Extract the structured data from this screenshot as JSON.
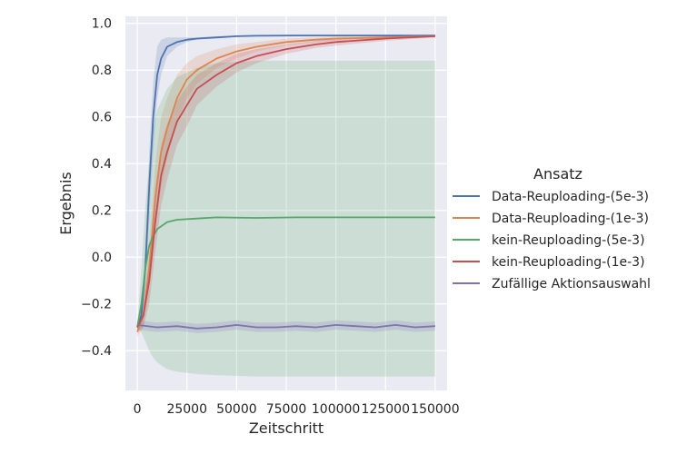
{
  "chart_data": {
    "type": "line",
    "title": "",
    "xlabel": "Zeitschritt",
    "ylabel": "Ergebnis",
    "xlim": [
      -6000,
      156000
    ],
    "ylim": [
      -0.57,
      1.03
    ],
    "xticks": [
      0,
      25000,
      50000,
      75000,
      100000,
      125000,
      150000
    ],
    "xtick_labels": [
      "0",
      "25000",
      "50000",
      "75000",
      "100000",
      "125000",
      "150000"
    ],
    "yticks": [
      -0.4,
      -0.2,
      0.0,
      0.2,
      0.4,
      0.6,
      0.8,
      1.0
    ],
    "ytick_labels": [
      "−0.4",
      "−0.2",
      "0.0",
      "0.2",
      "0.4",
      "0.6",
      "0.8",
      "1.0"
    ],
    "grid": true,
    "legend": {
      "title": "Ansatz",
      "placement": "right"
    },
    "series": [
      {
        "name": "Data-Reuploading-(5e-3)",
        "color": "#4c72b0",
        "x": [
          0,
          2000,
          4000,
          6000,
          8000,
          10000,
          12000,
          15000,
          20000,
          25000,
          30000,
          40000,
          50000,
          60000,
          80000,
          100000,
          125000,
          150000
        ],
        "y": [
          -0.3,
          -0.25,
          -0.05,
          0.3,
          0.6,
          0.78,
          0.85,
          0.9,
          0.92,
          0.93,
          0.935,
          0.94,
          0.945,
          0.947,
          0.948,
          0.948,
          0.948,
          0.948
        ],
        "y_low": [
          -0.32,
          -0.28,
          -0.12,
          0.15,
          0.45,
          0.68,
          0.78,
          0.86,
          0.9,
          0.92,
          0.93,
          0.935,
          0.942,
          0.945,
          0.946,
          0.946,
          0.946,
          0.946
        ],
        "y_high": [
          -0.28,
          -0.22,
          0.05,
          0.45,
          0.75,
          0.9,
          0.93,
          0.94,
          0.94,
          0.94,
          0.94,
          0.945,
          0.948,
          0.95,
          0.95,
          0.95,
          0.95,
          0.95
        ]
      },
      {
        "name": "Data-Reuploading-(1e-3)",
        "color": "#dd8452",
        "x": [
          0,
          3000,
          6000,
          9000,
          12000,
          15000,
          20000,
          25000,
          30000,
          40000,
          50000,
          60000,
          75000,
          90000,
          100000,
          125000,
          150000
        ],
        "y": [
          -0.32,
          -0.25,
          -0.05,
          0.25,
          0.45,
          0.55,
          0.68,
          0.76,
          0.8,
          0.85,
          0.88,
          0.9,
          0.92,
          0.93,
          0.935,
          0.94,
          0.945
        ],
        "y_low": [
          -0.34,
          -0.3,
          -0.15,
          0.1,
          0.3,
          0.42,
          0.58,
          0.68,
          0.74,
          0.81,
          0.85,
          0.88,
          0.905,
          0.92,
          0.925,
          0.935,
          0.94
        ],
        "y_high": [
          -0.29,
          -0.2,
          0.05,
          0.4,
          0.6,
          0.68,
          0.78,
          0.83,
          0.86,
          0.89,
          0.91,
          0.92,
          0.935,
          0.94,
          0.945,
          0.947,
          0.95
        ]
      },
      {
        "name": "kein-Reuploading-(5e-3)",
        "color": "#55a868",
        "x": [
          0,
          2000,
          4000,
          6000,
          8000,
          10000,
          15000,
          20000,
          30000,
          40000,
          60000,
          80000,
          100000,
          125000,
          150000
        ],
        "y": [
          -0.3,
          -0.2,
          -0.05,
          0.05,
          0.09,
          0.12,
          0.15,
          0.16,
          0.165,
          0.17,
          0.168,
          0.17,
          0.17,
          0.17,
          0.17
        ],
        "y_low": [
          -0.31,
          -0.32,
          -0.36,
          -0.4,
          -0.43,
          -0.45,
          -0.48,
          -0.49,
          -0.5,
          -0.505,
          -0.51,
          -0.51,
          -0.51,
          -0.51,
          -0.51
        ],
        "y_high": [
          -0.29,
          -0.05,
          0.22,
          0.4,
          0.55,
          0.63,
          0.72,
          0.77,
          0.81,
          0.83,
          0.84,
          0.84,
          0.84,
          0.84,
          0.84
        ]
      },
      {
        "name": "kein-Reuploading-(1e-3)",
        "color": "#c44e52",
        "x": [
          0,
          3000,
          6000,
          9000,
          12000,
          15000,
          20000,
          25000,
          30000,
          40000,
          50000,
          60000,
          75000,
          90000,
          100000,
          125000,
          150000
        ],
        "y": [
          -0.3,
          -0.25,
          -0.1,
          0.15,
          0.35,
          0.45,
          0.58,
          0.65,
          0.72,
          0.78,
          0.83,
          0.86,
          0.89,
          0.91,
          0.92,
          0.935,
          0.945
        ],
        "y_low": [
          -0.32,
          -0.3,
          -0.2,
          0.02,
          0.22,
          0.33,
          0.48,
          0.56,
          0.65,
          0.73,
          0.79,
          0.83,
          0.87,
          0.895,
          0.905,
          0.925,
          0.94
        ],
        "y_high": [
          -0.28,
          -0.2,
          0.0,
          0.3,
          0.48,
          0.57,
          0.67,
          0.73,
          0.78,
          0.83,
          0.87,
          0.89,
          0.91,
          0.925,
          0.935,
          0.945,
          0.95
        ]
      },
      {
        "name": "Zufällige Aktionsauswahl",
        "color": "#8172b2",
        "x": [
          0,
          10000,
          20000,
          30000,
          40000,
          50000,
          60000,
          70000,
          80000,
          90000,
          100000,
          110000,
          120000,
          130000,
          140000,
          150000
        ],
        "y": [
          -0.29,
          -0.3,
          -0.295,
          -0.305,
          -0.3,
          -0.29,
          -0.3,
          -0.3,
          -0.295,
          -0.3,
          -0.29,
          -0.295,
          -0.3,
          -0.29,
          -0.3,
          -0.295
        ],
        "y_low": [
          -0.31,
          -0.32,
          -0.315,
          -0.325,
          -0.32,
          -0.31,
          -0.32,
          -0.32,
          -0.315,
          -0.32,
          -0.31,
          -0.315,
          -0.32,
          -0.31,
          -0.32,
          -0.315
        ],
        "y_high": [
          -0.27,
          -0.28,
          -0.275,
          -0.285,
          -0.28,
          -0.27,
          -0.28,
          -0.28,
          -0.275,
          -0.28,
          -0.27,
          -0.275,
          -0.28,
          -0.27,
          -0.28,
          -0.275
        ]
      }
    ]
  }
}
